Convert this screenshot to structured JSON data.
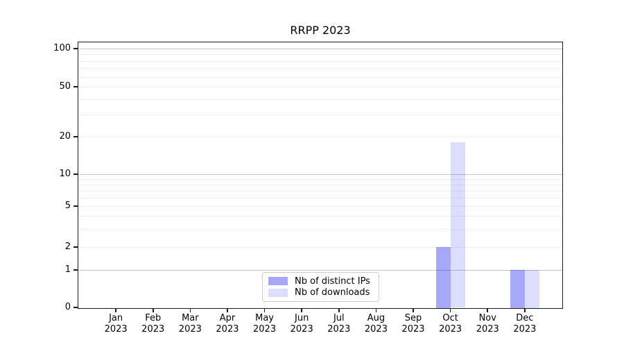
{
  "chart_data": {
    "type": "bar",
    "title": "RRPP 2023",
    "categories": [
      "Jan 2023",
      "Feb 2023",
      "Mar 2023",
      "Apr 2023",
      "May 2023",
      "Jun 2023",
      "Jul 2023",
      "Aug 2023",
      "Sep 2023",
      "Oct 2023",
      "Nov 2023",
      "Dec 2023"
    ],
    "series": [
      {
        "name": "Nb of distinct IPs",
        "color": "rgba(0,0,235,0.34)",
        "values": [
          0,
          0,
          0,
          0,
          0,
          0,
          0,
          0,
          0,
          2,
          0,
          1
        ]
      },
      {
        "name": "Nb of downloads",
        "color": "rgba(0,0,235,0.135)",
        "values": [
          0,
          0,
          0,
          0,
          0,
          0,
          0,
          0,
          0,
          18,
          0,
          1
        ]
      }
    ],
    "xlabel": "",
    "ylabel": "",
    "y_scale": "log-like (compressed low decade, 0 baseline)",
    "y_ticks": [
      0,
      1,
      2,
      5,
      10,
      20,
      50,
      100
    ],
    "ylim": [
      0,
      100
    ],
    "grid": true,
    "major_gridlines": [
      1,
      10,
      100
    ],
    "minor_gridlines": [
      2,
      3,
      4,
      5,
      6,
      7,
      8,
      9,
      20,
      30,
      40,
      50,
      60,
      70,
      80,
      90
    ],
    "legend_position": "lower center inside"
  },
  "style": {
    "background": "#ffffff",
    "spine_color": "#1a1a1a",
    "major_grid_color": "#c3c3c3",
    "minor_grid_color": "#ececec",
    "tick_color": "#1a1a1a",
    "text_color": "#000000",
    "legend_border_color": "#cccccc"
  }
}
